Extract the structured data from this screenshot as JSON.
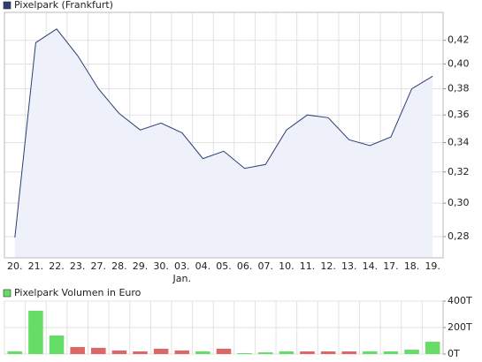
{
  "chart_data": [
    {
      "type": "area",
      "title": "Pixelpark (Frankfurt)",
      "color": "#2b3f73",
      "fill": "#eef0fa",
      "categories": [
        "20.",
        "21.",
        "22.",
        "23.",
        "27.",
        "28.",
        "29.",
        "30.",
        "03.",
        "04.",
        "05.",
        "06.",
        "07.",
        "10.",
        "11.",
        "12.",
        "13.",
        "14.",
        "17.",
        "18.",
        "19."
      ],
      "sublabels": [
        null,
        null,
        null,
        null,
        null,
        null,
        null,
        null,
        "Jan.",
        null,
        null,
        null,
        null,
        null,
        null,
        null,
        null,
        null,
        null,
        null,
        null
      ],
      "values": [
        0.2795,
        0.418,
        0.43,
        0.407,
        0.38,
        0.361,
        0.349,
        0.354,
        0.347,
        0.329,
        0.334,
        0.3224,
        0.325,
        0.349,
        0.36,
        0.358,
        0.342,
        0.338,
        0.344,
        0.38,
        0.39
      ],
      "ylim": [
        0.268,
        0.445
      ],
      "log_scale": true,
      "grid": true,
      "yticks": [
        {
          "value": 0.28,
          "label": "0,28"
        },
        {
          "value": 0.3,
          "label": "0,30"
        },
        {
          "value": 0.32,
          "label": "0,32"
        },
        {
          "value": 0.34,
          "label": "0,34"
        },
        {
          "value": 0.36,
          "label": "0,36"
        },
        {
          "value": 0.38,
          "label": "0,38"
        },
        {
          "value": 0.4,
          "label": "0,40"
        },
        {
          "value": 0.42,
          "label": "0,42"
        }
      ]
    },
    {
      "type": "bar",
      "title": "Pixelpark Volumen in Euro",
      "color": "#66dd66",
      "grid": true,
      "values": [
        20,
        327,
        140,
        53,
        47,
        27,
        20,
        40,
        27,
        20,
        40,
        7,
        13,
        20,
        20,
        20,
        20,
        20,
        20,
        33,
        93
      ],
      "colors": [
        "#66dd66",
        "#66dd66",
        "#66dd66",
        "#dd6666",
        "#dd6666",
        "#dd6666",
        "#dd6666",
        "#dd6666",
        "#dd6666",
        "#66dd66",
        "#dd6666",
        "#66dd66",
        "#66dd66",
        "#66dd66",
        "#dd6666",
        "#dd6666",
        "#dd6666",
        "#66dd66",
        "#66dd66",
        "#66dd66",
        "#66dd66"
      ],
      "ylim": [
        0,
        400
      ],
      "yticks": [
        {
          "value": 0,
          "label": "0T"
        },
        {
          "value": 200,
          "label": "200T"
        },
        {
          "value": 400,
          "label": "400T"
        }
      ]
    }
  ]
}
